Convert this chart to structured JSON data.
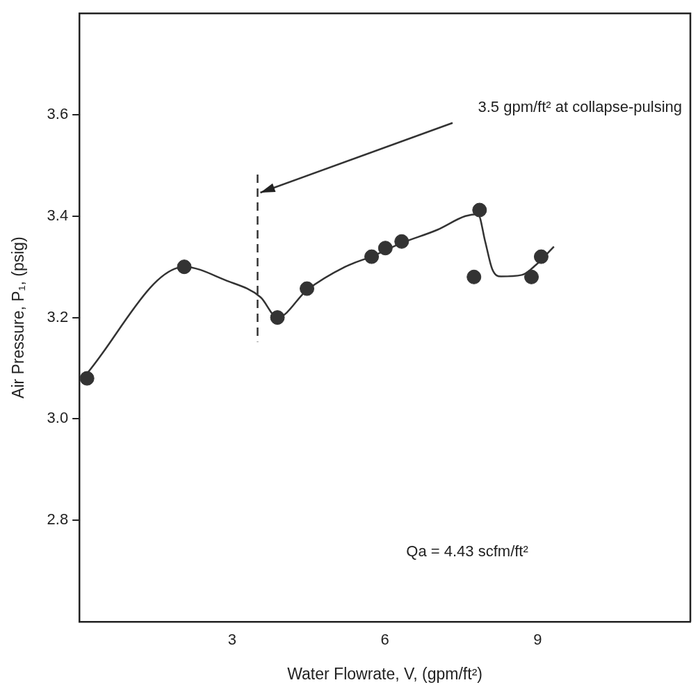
{
  "chart_data": {
    "type": "scatter",
    "xlabel": "Water Flowrate, V, (gpm/ft²)",
    "ylabel": "Air Pressure, P₁, (psig)",
    "xlim": [
      0,
      12
    ],
    "ylim": [
      2.6,
      3.8
    ],
    "xticks": [
      3,
      6,
      9
    ],
    "yticks": [
      2.8,
      {
        "value": 3,
        "label": "3.0"
      },
      3.2,
      3.4,
      3.6
    ],
    "grid": false,
    "legend": false,
    "marker": "circle",
    "series": [
      {
        "type": "scatter",
        "color": "#333333",
        "x": [
          0.15,
          2.06,
          3.89,
          4.47,
          5.74,
          6.01,
          6.33,
          7.86,
          7.75,
          8.88,
          9.07
        ],
        "values": [
          3.08,
          3.3,
          3.2,
          3.257,
          3.32,
          3.337,
          3.35,
          3.412,
          3.28,
          3.28,
          3.32
        ]
      },
      {
        "type": "line",
        "color": "#333333",
        "marker": "none",
        "x": [
          0.06,
          2.06,
          2.86,
          3.56,
          3.89,
          4.47,
          5.22,
          5.78,
          6.33,
          7.03,
          7.58,
          7.83,
          7.97,
          8.11,
          8.28,
          8.69,
          8.97,
          9.32
        ],
        "values": [
          3.079,
          3.3,
          3.274,
          3.24,
          3.2,
          3.254,
          3.3,
          3.322,
          3.347,
          3.373,
          3.4,
          3.404,
          3.35,
          3.295,
          3.281,
          3.284,
          3.304,
          3.34
        ]
      }
    ],
    "ref_lines": [
      {
        "axis": "x",
        "value": 3.5,
        "label": "3.5 gpm/ft² at collapse-pulsing",
        "line_style": "dashed",
        "color": "#333333"
      }
    ],
    "annotations": [
      "Qa = 4.43 scfm/ft²"
    ]
  }
}
